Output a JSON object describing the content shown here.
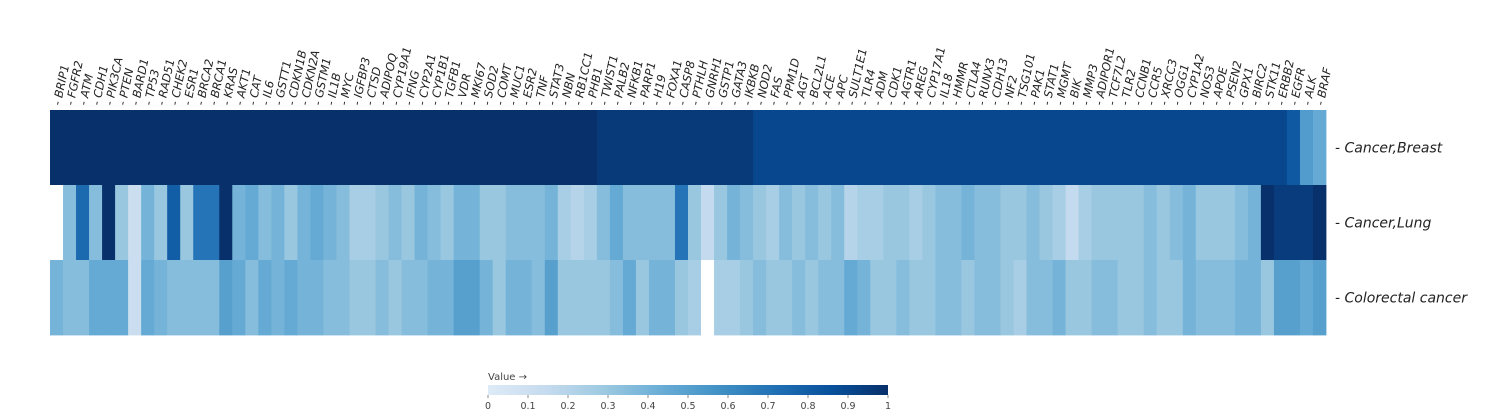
{
  "chart_data": {
    "type": "heatmap",
    "title": "",
    "columns": [
      "BRIP1",
      "FGFR2",
      "ATM",
      "CDH1",
      "PIK3CA",
      "PTEN",
      "BARD1",
      "TP53",
      "RAD51",
      "CHEK2",
      "ESR1",
      "BRCA2",
      "BRCA1",
      "KRAS",
      "AKT1",
      "CAT",
      "IL6",
      "GSTT1",
      "CDKN1B",
      "CDKN2A",
      "GSTM1",
      "IL1B",
      "MYC",
      "IGFBP3",
      "CTSD",
      "ADIPOQ",
      "CYP19A1",
      "IFNG",
      "CYP2A1",
      "CYP1B1",
      "TGFB1",
      "VDR",
      "MKI67",
      "SOD2",
      "COMT",
      "MUC1",
      "ESR2",
      "TNF",
      "STAT3",
      "NBN",
      "RB1CC1",
      "PHB1",
      "TWIST1",
      "PALB2",
      "NFKB1",
      "PARP1",
      "H19",
      "FOXA1",
      "CASP8",
      "PTHLH",
      "GNRH1",
      "GSTP1",
      "GATA3",
      "IKBKB",
      "NOD2",
      "FAS",
      "PPM1D",
      "AGT",
      "BCL2L1",
      "ACE",
      "APC",
      "SULT1E1",
      "TLR4",
      "ADM",
      "CDK1",
      "AGTR1",
      "AREG",
      "CYP17A1",
      "IL18",
      "HMMR",
      "CTLA4",
      "RUNX3",
      "CDH13",
      "NF2",
      "TSG101",
      "PAK1",
      "STAT1",
      "MGMT",
      "BIK",
      "MMP3",
      "ADIPOR1",
      "TCF7L2",
      "TLR2",
      "CCNB1",
      "CCR5",
      "XRCC3",
      "OGG1",
      "CYP1A2",
      "NOS3",
      "APOE",
      "PSEN2",
      "GPX1",
      "BIRC2",
      "STK11",
      "ERBB2",
      "EGFR",
      "ALK",
      "BRAF"
    ],
    "rows": [
      "Cancer,Breast",
      "Cancer,Lung",
      "Colorectal cancer"
    ],
    "values": [
      [
        1.0,
        1.0,
        1.0,
        1.0,
        1.0,
        1.0,
        1.0,
        1.0,
        1.0,
        1.0,
        1.0,
        1.0,
        1.0,
        1.0,
        1.0,
        1.0,
        1.0,
        1.0,
        1.0,
        1.0,
        1.0,
        1.0,
        1.0,
        1.0,
        1.0,
        1.0,
        1.0,
        1.0,
        1.0,
        1.0,
        1.0,
        1.0,
        1.0,
        1.0,
        1.0,
        1.0,
        1.0,
        1.0,
        1.0,
        1.0,
        1.0,
        1.0,
        0.96,
        0.96,
        0.96,
        0.96,
        0.96,
        0.96,
        0.96,
        0.96,
        0.96,
        0.96,
        0.96,
        0.96,
        0.9,
        0.9,
        0.9,
        0.9,
        0.9,
        0.9,
        0.9,
        0.9,
        0.9,
        0.9,
        0.9,
        0.9,
        0.9,
        0.9,
        0.9,
        0.9,
        0.9,
        0.9,
        0.9,
        0.9,
        0.9,
        0.9,
        0.9,
        0.9,
        0.9,
        0.9,
        0.9,
        0.9,
        0.9,
        0.9,
        0.9,
        0.9,
        0.9,
        0.9,
        0.9,
        0.9,
        0.9,
        0.9,
        0.9,
        0.9,
        0.9,
        0.82,
        0.52,
        0.45
      ],
      [
        0.0,
        0.35,
        0.75,
        0.35,
        1.0,
        0.3,
        0.12,
        0.4,
        0.3,
        0.8,
        0.3,
        0.7,
        0.7,
        1.0,
        0.4,
        0.45,
        0.35,
        0.4,
        0.3,
        0.4,
        0.45,
        0.4,
        0.35,
        0.25,
        0.25,
        0.3,
        0.35,
        0.3,
        0.4,
        0.35,
        0.3,
        0.4,
        0.4,
        0.3,
        0.3,
        0.35,
        0.35,
        0.35,
        0.4,
        0.25,
        0.2,
        0.25,
        0.35,
        0.45,
        0.35,
        0.35,
        0.35,
        0.35,
        0.7,
        0.3,
        0.15,
        0.3,
        0.4,
        0.35,
        0.3,
        0.25,
        0.35,
        0.3,
        0.35,
        0.3,
        0.35,
        0.2,
        0.25,
        0.25,
        0.3,
        0.3,
        0.25,
        0.3,
        0.35,
        0.35,
        0.4,
        0.35,
        0.35,
        0.3,
        0.3,
        0.35,
        0.3,
        0.25,
        0.15,
        0.25,
        0.3,
        0.3,
        0.3,
        0.3,
        0.35,
        0.3,
        0.35,
        0.4,
        0.3,
        0.3,
        0.3,
        0.35,
        0.4,
        1.0,
        0.95,
        0.95,
        0.95,
        1.0
      ],
      [
        0.4,
        0.35,
        0.35,
        0.45,
        0.45,
        0.45,
        0.12,
        0.45,
        0.4,
        0.35,
        0.35,
        0.35,
        0.35,
        0.5,
        0.45,
        0.35,
        0.45,
        0.4,
        0.45,
        0.4,
        0.4,
        0.35,
        0.35,
        0.3,
        0.3,
        0.35,
        0.3,
        0.35,
        0.35,
        0.4,
        0.4,
        0.5,
        0.5,
        0.4,
        0.3,
        0.4,
        0.4,
        0.35,
        0.5,
        0.3,
        0.3,
        0.3,
        0.3,
        0.35,
        0.45,
        0.3,
        0.4,
        0.4,
        0.3,
        0.25,
        0.0,
        0.25,
        0.25,
        0.3,
        0.35,
        0.3,
        0.3,
        0.35,
        0.3,
        0.35,
        0.35,
        0.45,
        0.4,
        0.3,
        0.3,
        0.35,
        0.3,
        0.3,
        0.35,
        0.35,
        0.3,
        0.35,
        0.35,
        0.3,
        0.25,
        0.35,
        0.35,
        0.4,
        0.3,
        0.3,
        0.35,
        0.35,
        0.3,
        0.3,
        0.35,
        0.3,
        0.3,
        0.4,
        0.35,
        0.35,
        0.35,
        0.4,
        0.4,
        0.3,
        0.5,
        0.5,
        0.45,
        0.5
      ]
    ],
    "colorbar": {
      "title": "Value →",
      "min": 0,
      "max": 1,
      "ticks": [
        0,
        0.1,
        0.2,
        0.3,
        0.4,
        0.5,
        0.6,
        0.7,
        0.8,
        0.9,
        1
      ],
      "tick_labels": [
        "0",
        "0.1",
        "0.2",
        "0.3",
        "0.4",
        "0.5",
        "0.6",
        "0.7",
        "0.8",
        "0.9",
        "1"
      ],
      "colors": [
        "#deebf7",
        "#c6dbef",
        "#9ecae1",
        "#6baed6",
        "#4292c6",
        "#2171b5",
        "#08519c",
        "#08306b"
      ]
    }
  }
}
